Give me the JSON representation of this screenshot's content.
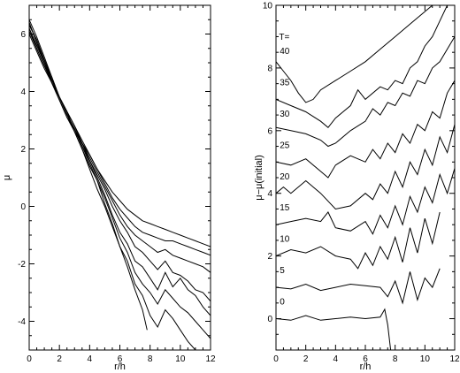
{
  "chart_data": [
    {
      "type": "line",
      "xlabel": "r/h",
      "ylabel": "μ",
      "xlim": [
        0,
        12
      ],
      "ylim": [
        -5,
        7
      ],
      "xticks": [
        "0",
        "2",
        "4",
        "6",
        "8",
        "10",
        "12"
      ],
      "yticks": [
        "-4",
        "-2",
        "0",
        "2",
        "4",
        "6"
      ],
      "series": [
        {
          "x": [
            0,
            0.5,
            1,
            1.5,
            2,
            2.5,
            3,
            3.5,
            4,
            4.5,
            5,
            5.5,
            6,
            6.5,
            7,
            7.5,
            7.8
          ],
          "values": [
            6.3,
            5.8,
            5.1,
            4.5,
            3.8,
            3.2,
            2.6,
            2.0,
            1.3,
            0.6,
            0.0,
            -0.7,
            -1.4,
            -2.1,
            -2.9,
            -3.6,
            -4.3
          ]
        },
        {
          "x": [
            0,
            0.5,
            1,
            1.5,
            2,
            2.5,
            3,
            3.5,
            4,
            4.5,
            5,
            5.5,
            6,
            6.5,
            7,
            7.5,
            8,
            8.5,
            9,
            9.5,
            10,
            10.5,
            11
          ],
          "values": [
            6.5,
            5.9,
            5.2,
            4.5,
            3.8,
            3.3,
            2.6,
            2.0,
            1.4,
            0.9,
            0.1,
            -0.6,
            -1.4,
            -1.9,
            -2.7,
            -3.1,
            -3.8,
            -4.2,
            -3.6,
            -3.9,
            -4.3,
            -4.7,
            -5.0
          ]
        },
        {
          "x": [
            0,
            0.5,
            1,
            1.5,
            2,
            2.5,
            3,
            3.5,
            4,
            4.5,
            5,
            5.5,
            6,
            6.5,
            7,
            7.5,
            8,
            8.5,
            9,
            9.5,
            10,
            10.5,
            11,
            11.5,
            12
          ],
          "values": [
            6.4,
            5.7,
            5.1,
            4.4,
            3.8,
            3.2,
            2.7,
            2.1,
            1.5,
            0.9,
            0.3,
            -0.4,
            -1.1,
            -1.6,
            -2.3,
            -2.7,
            -3.0,
            -3.4,
            -2.9,
            -3.2,
            -3.5,
            -3.7,
            -4.0,
            -4.3,
            -4.6
          ]
        },
        {
          "x": [
            0,
            0.5,
            1,
            1.5,
            2,
            2.5,
            3,
            3.5,
            4,
            4.5,
            5,
            5.5,
            6,
            6.5,
            7,
            7.5,
            8,
            8.5,
            9,
            9.5,
            10,
            10.5,
            11,
            11.5,
            12
          ],
          "values": [
            6.2,
            5.6,
            5.0,
            4.3,
            3.7,
            3.1,
            2.6,
            2.2,
            1.6,
            1.0,
            0.4,
            -0.3,
            -0.9,
            -1.3,
            -1.9,
            -2.1,
            -2.5,
            -2.9,
            -2.3,
            -2.8,
            -2.5,
            -2.9,
            -3.1,
            -3.5,
            -3.8
          ]
        },
        {
          "x": [
            0,
            0.5,
            1,
            1.5,
            2,
            2.5,
            3,
            3.5,
            4,
            4.5,
            5,
            5.5,
            6,
            6.5,
            7,
            7.5,
            8,
            8.5,
            9,
            9.5,
            10,
            10.5,
            11,
            11.5,
            12
          ],
          "values": [
            6.1,
            5.5,
            4.9,
            4.3,
            3.7,
            3.1,
            2.7,
            2.1,
            1.6,
            1.1,
            0.6,
            0.0,
            -0.5,
            -0.9,
            -1.4,
            -1.6,
            -1.9,
            -2.2,
            -1.9,
            -2.3,
            -2.4,
            -2.6,
            -2.9,
            -3.0,
            -3.3
          ]
        },
        {
          "x": [
            0,
            0.5,
            1,
            1.5,
            2,
            2.5,
            3,
            3.5,
            4,
            4.5,
            5,
            5.5,
            6,
            6.5,
            7,
            7.5,
            8,
            8.5,
            9,
            9.5,
            10,
            10.5,
            11,
            11.5,
            12
          ],
          "values": [
            6.0,
            5.4,
            4.8,
            4.3,
            3.8,
            3.2,
            2.7,
            2.2,
            1.7,
            1.2,
            0.7,
            0.2,
            -0.3,
            -0.7,
            -1.0,
            -1.2,
            -1.4,
            -1.6,
            -1.5,
            -1.7,
            -1.8,
            -1.9,
            -2.0,
            -2.1,
            -2.3
          ]
        },
        {
          "x": [
            0,
            0.5,
            1,
            1.5,
            2,
            2.5,
            3,
            3.5,
            4,
            4.5,
            5,
            5.5,
            6,
            6.5,
            7,
            7.5,
            8,
            8.5,
            9,
            9.5,
            10,
            10.5,
            11,
            11.5,
            12
          ],
          "values": [
            6.2,
            5.5,
            4.9,
            4.4,
            3.8,
            3.3,
            2.8,
            2.3,
            1.8,
            1.3,
            0.8,
            0.3,
            -0.1,
            -0.4,
            -0.7,
            -0.9,
            -1.0,
            -1.1,
            -1.2,
            -1.2,
            -1.3,
            -1.4,
            -1.5,
            -1.6,
            -1.7
          ]
        },
        {
          "x": [
            0,
            0.5,
            1,
            1.5,
            2,
            2.5,
            3,
            3.5,
            4,
            4.5,
            5,
            5.5,
            6,
            6.5,
            7,
            7.5,
            8,
            8.5,
            9,
            9.5,
            10,
            10.5,
            11,
            11.5,
            12
          ],
          "values": [
            6.4,
            5.7,
            5.0,
            4.4,
            3.8,
            3.3,
            2.8,
            2.2,
            1.8,
            1.3,
            0.9,
            0.5,
            0.2,
            -0.1,
            -0.3,
            -0.5,
            -0.6,
            -0.7,
            -0.8,
            -0.9,
            -1.0,
            -1.1,
            -1.2,
            -1.3,
            -1.4
          ]
        }
      ]
    },
    {
      "type": "line",
      "xlabel": "r/h",
      "ylabel": "μ−μ(initial)",
      "xlim": [
        0,
        12
      ],
      "ylim": [
        -1,
        10
      ],
      "xticks": [
        "0",
        "2",
        "4",
        "6",
        "8",
        "10",
        "12"
      ],
      "yticks": [
        "0",
        "2",
        "4",
        "6",
        "8",
        "10"
      ],
      "annotations": {
        "T_label": "T=",
        "curve_labels": [
          "40",
          "35",
          "30",
          "25",
          "20",
          "15",
          "10",
          "5",
          "0"
        ]
      },
      "series": [
        {
          "x": [
            0,
            1,
            2,
            3,
            4,
            5,
            6,
            7,
            7.3,
            7.5,
            7.7
          ],
          "values": [
            0.0,
            -0.05,
            0.1,
            -0.05,
            0.0,
            0.05,
            0.0,
            0.05,
            0.3,
            -0.2,
            -1.0
          ]
        },
        {
          "x": [
            0,
            1,
            2,
            3,
            4,
            5,
            6,
            7,
            7.5,
            8,
            8.5,
            9,
            9.5,
            10,
            10.5,
            11
          ],
          "values": [
            1.0,
            0.95,
            1.1,
            0.9,
            1.0,
            1.1,
            1.05,
            1.0,
            0.7,
            1.2,
            0.5,
            1.5,
            0.6,
            1.3,
            1.0,
            1.6
          ]
        },
        {
          "x": [
            0,
            1,
            2,
            3,
            4,
            5,
            5.5,
            6,
            6.5,
            7,
            7.5,
            8,
            8.5,
            9,
            9.5,
            10,
            10.5,
            11
          ],
          "values": [
            2.0,
            2.2,
            2.1,
            2.3,
            2.0,
            1.9,
            1.6,
            2.1,
            1.7,
            2.3,
            1.9,
            2.6,
            1.8,
            2.9,
            2.1,
            3.2,
            2.4,
            3.4
          ]
        },
        {
          "x": [
            0,
            1,
            2,
            3,
            3.5,
            4,
            5,
            6,
            6.5,
            7,
            7.5,
            8,
            8.5,
            9,
            9.5,
            10,
            10.5,
            11,
            11.5,
            12
          ],
          "values": [
            3.0,
            3.1,
            3.2,
            3.1,
            3.4,
            2.9,
            2.8,
            3.1,
            2.7,
            3.3,
            2.9,
            3.6,
            3.0,
            3.9,
            3.4,
            4.2,
            3.7,
            4.6,
            4.0,
            4.8
          ]
        },
        {
          "x": [
            0,
            0.5,
            1,
            2,
            3,
            4,
            5,
            6,
            6.5,
            7,
            7.5,
            8,
            8.5,
            9,
            9.5,
            10,
            10.5,
            11,
            11.5,
            12
          ],
          "values": [
            4.0,
            4.2,
            4.0,
            4.4,
            4.0,
            3.5,
            3.6,
            4.0,
            3.8,
            4.3,
            4.0,
            4.7,
            4.2,
            5.0,
            4.6,
            5.4,
            4.9,
            5.8,
            5.3,
            6.2
          ]
        },
        {
          "x": [
            0,
            1,
            2,
            3,
            3.5,
            4,
            5,
            6,
            6.5,
            7,
            7.5,
            8,
            8.5,
            9,
            9.5,
            10,
            10.5,
            11,
            11.5,
            12
          ],
          "values": [
            5.0,
            4.9,
            5.1,
            4.7,
            4.5,
            4.9,
            5.2,
            5.0,
            5.4,
            5.1,
            5.6,
            5.3,
            5.9,
            5.6,
            6.2,
            6.0,
            6.6,
            6.4,
            7.2,
            7.6
          ]
        },
        {
          "x": [
            0,
            1,
            2,
            3,
            3.5,
            4,
            5,
            6,
            6.5,
            7,
            7.5,
            8,
            8.5,
            9,
            9.5,
            10,
            10.5,
            11,
            11.5,
            12
          ],
          "values": [
            6.1,
            6.0,
            5.9,
            5.7,
            5.5,
            5.6,
            6.0,
            6.3,
            6.7,
            6.5,
            6.9,
            6.8,
            7.2,
            7.1,
            7.6,
            7.5,
            8.0,
            8.2,
            8.6,
            9.0
          ]
        },
        {
          "x": [
            0,
            1,
            2,
            3,
            3.5,
            4,
            5,
            5.5,
            6,
            7,
            7.5,
            8,
            8.5,
            9,
            9.5,
            10,
            10.5,
            11,
            11.5
          ],
          "values": [
            7.0,
            6.8,
            6.6,
            6.3,
            6.1,
            6.4,
            6.8,
            7.3,
            7.0,
            7.4,
            7.3,
            7.6,
            7.5,
            8.0,
            8.2,
            8.7,
            9.0,
            9.5,
            10.0
          ]
        },
        {
          "x": [
            0,
            0.5,
            1,
            1.5,
            2,
            2.5,
            3,
            4,
            5,
            6,
            7,
            8,
            9,
            10,
            10.5
          ],
          "values": [
            8.2,
            7.9,
            7.6,
            7.2,
            6.9,
            7.0,
            7.3,
            7.6,
            7.9,
            8.2,
            8.6,
            9.0,
            9.4,
            9.8,
            10.0
          ]
        }
      ]
    }
  ]
}
